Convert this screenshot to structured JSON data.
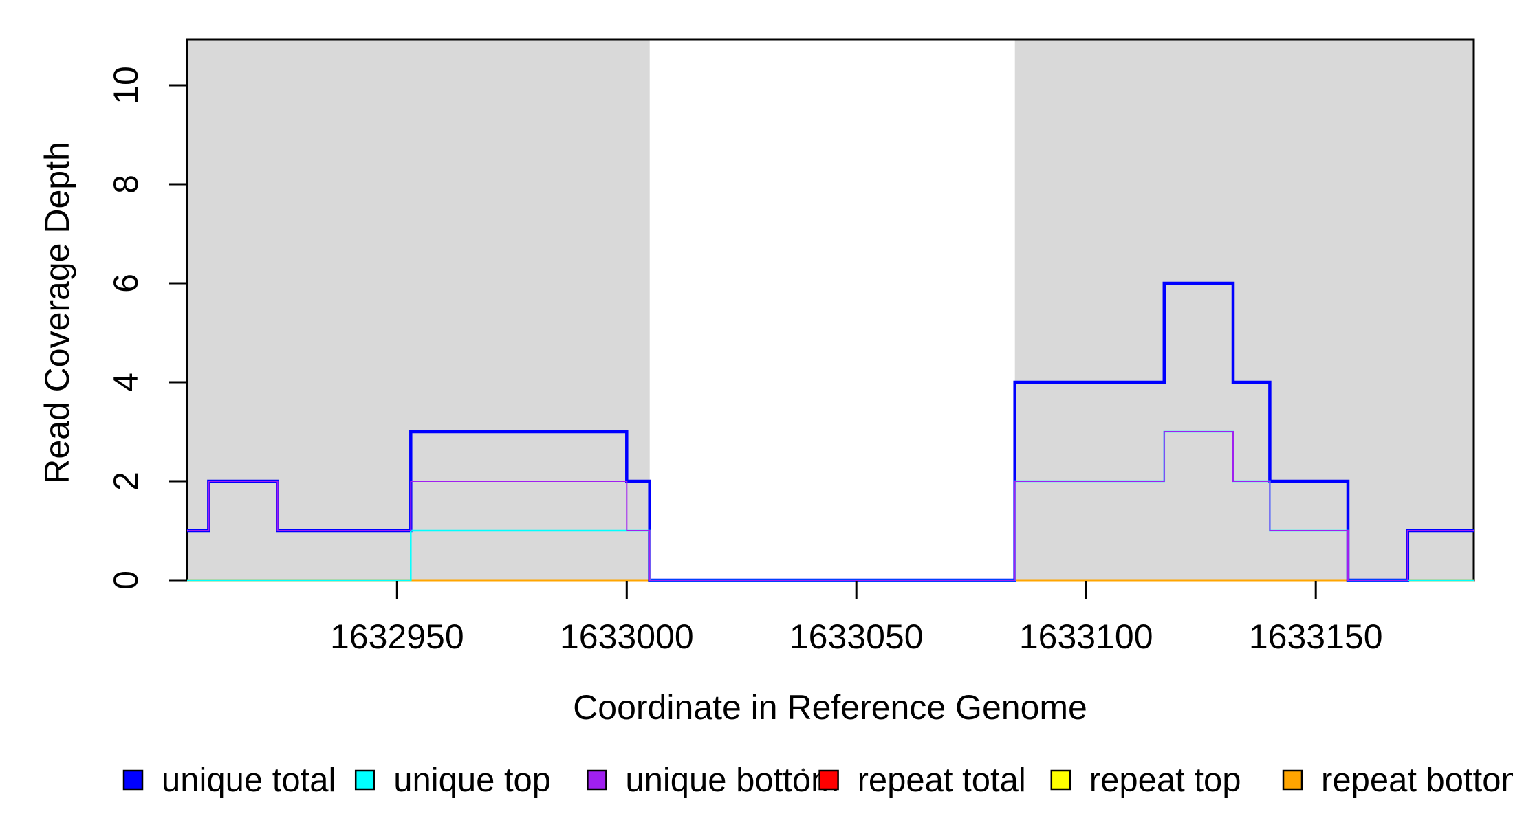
{
  "figure": {
    "background": "#FFFFFF",
    "shade_color": "#D9D9D9",
    "box_color": "#000000",
    "tick_color": "#000000"
  },
  "legend": {
    "items": [
      {
        "label": "unique total",
        "color": "#0000FF"
      },
      {
        "label": "unique top",
        "color": "#00FFFF"
      },
      {
        "label": "unique bottom",
        "color": "#A020F0"
      },
      {
        "label": "repeat total",
        "color": "#FF0000"
      },
      {
        "label": "repeat top",
        "color": "#FFFF00"
      },
      {
        "label": "repeat bottom",
        "color": "#FFA500"
      }
    ]
  },
  "chart_data": {
    "type": "line",
    "subtype": "step",
    "title": "",
    "xlabel": "Coordinate in Reference Genome",
    "ylabel": "Read Coverage Depth",
    "xlim": [
      1632904.3,
      1633184.4
    ],
    "ylim": [
      0,
      10.93
    ],
    "xticks": [
      1632950,
      1633000,
      1633050,
      1633100,
      1633150
    ],
    "yticks": [
      0,
      2,
      4,
      6,
      8,
      10
    ],
    "grid": false,
    "legend_position": "bottom",
    "shaded_regions": [
      {
        "name": "repeat-region-left",
        "from": 1632904.3,
        "to": 1633005.0
      },
      {
        "name": "repeat-region-right",
        "from": 1633084.5,
        "to": 1633184.4
      }
    ],
    "series": [
      {
        "name": "repeat total",
        "color": "#FF0000",
        "width": 2.5,
        "steps": [
          [
            1632904.3,
            0
          ],
          [
            1633184.4,
            0
          ]
        ]
      },
      {
        "name": "repeat top",
        "color": "#FFFF00",
        "width": 2.5,
        "steps": [
          [
            1632904.3,
            0
          ],
          [
            1633184.4,
            0
          ]
        ]
      },
      {
        "name": "repeat bottom",
        "color": "#FFA500",
        "width": 3,
        "steps": [
          [
            1632904.3,
            0
          ],
          [
            1633184.4,
            0
          ]
        ]
      },
      {
        "name": "unique total",
        "color": "#0000FF",
        "width": 4.5,
        "steps": [
          [
            1632904.3,
            1
          ],
          [
            1632909,
            2
          ],
          [
            1632924,
            1
          ],
          [
            1632953,
            3
          ],
          [
            1633000,
            2
          ],
          [
            1633005,
            0
          ],
          [
            1633084.5,
            4
          ],
          [
            1633117,
            6
          ],
          [
            1633132,
            4
          ],
          [
            1633140,
            2
          ],
          [
            1633157,
            0
          ],
          [
            1633170,
            1
          ],
          [
            1633184.4,
            1
          ]
        ]
      },
      {
        "name": "unique top",
        "color": "#00FFFF",
        "width": 2.5,
        "steps": [
          [
            1632904.3,
            0
          ],
          [
            1632953,
            1
          ],
          [
            1633005,
            0
          ],
          [
            1633084.5,
            2
          ],
          [
            1633117,
            3
          ],
          [
            1633132,
            2
          ],
          [
            1633140,
            1
          ],
          [
            1633157,
            0
          ],
          [
            1633184.4,
            0
          ]
        ]
      },
      {
        "name": "unique bottom",
        "color": "#A020F0",
        "width": 2,
        "steps": [
          [
            1632904.3,
            1
          ],
          [
            1632909,
            2
          ],
          [
            1632924,
            1
          ],
          [
            1632953,
            2
          ],
          [
            1633000,
            1
          ],
          [
            1633005,
            0
          ],
          [
            1633084.5,
            2
          ],
          [
            1633117,
            3
          ],
          [
            1633132,
            2
          ],
          [
            1633140,
            1
          ],
          [
            1633157,
            0
          ],
          [
            1633170,
            1
          ],
          [
            1633184.4,
            1
          ]
        ]
      }
    ],
    "artifact_dot": {
      "x": 1168,
      "y": 1120
    }
  }
}
